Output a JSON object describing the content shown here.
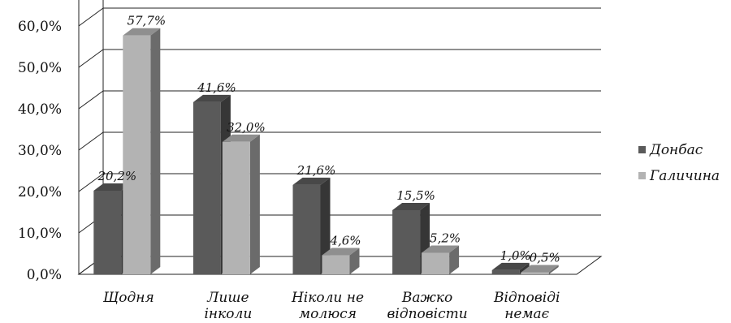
{
  "chart_data": {
    "type": "bar",
    "categories": [
      [
        "Щодня"
      ],
      [
        "Лише",
        "інколи"
      ],
      [
        "Ніколи не",
        "молюся"
      ],
      [
        "Важко",
        "відповісти"
      ],
      [
        "Відповіді",
        "немає"
      ]
    ],
    "series": [
      {
        "name": "Донбас",
        "values": [
          20.2,
          41.6,
          21.6,
          15.5,
          1.0
        ],
        "labels": [
          "20,2%",
          "41,6%",
          "21,6%",
          "15,5%",
          "1,0%"
        ],
        "color": "#5a5a5a"
      },
      {
        "name": "Галичина",
        "values": [
          57.7,
          32.0,
          4.6,
          5.2,
          0.5
        ],
        "labels": [
          "57,7%",
          "32,0%",
          "4,6%",
          "5,2%",
          "0,5%"
        ],
        "color": "#b3b3b3"
      }
    ],
    "ylim": [
      0,
      70
    ],
    "yticks": [
      "0,0%",
      "10,0%",
      "20,0%",
      "30,0%",
      "40,0%",
      "50,0%",
      "60,0%"
    ],
    "grid": true,
    "legend_position": "right",
    "style": "3d-clustered-column"
  }
}
